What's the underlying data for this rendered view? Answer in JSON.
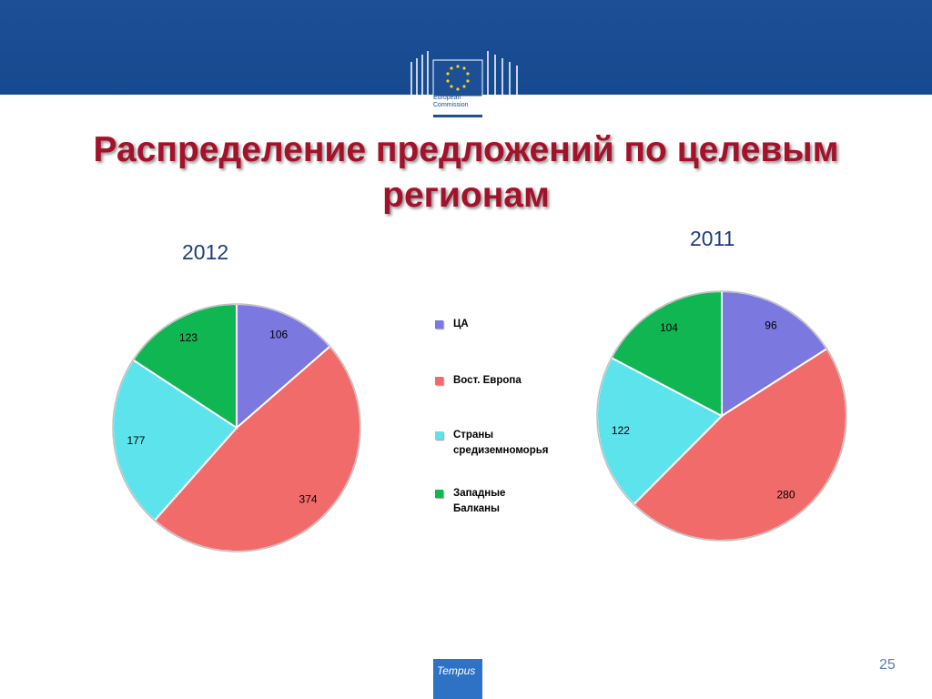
{
  "slide": {
    "title": "Распределение предложений по целевым регионам",
    "page_number": "25",
    "logo_text": "European\nCommission",
    "footer_logo_text": "Tempus"
  },
  "colors": {
    "topbar": "#1c4f96",
    "title": "#a3122a",
    "ca": "#7b78e0",
    "east_europe": "#f26b6b",
    "mediterranean": "#5de3ec",
    "balkans": "#10b652"
  },
  "legend": [
    {
      "label": "ЦА",
      "color": "#7b78e0"
    },
    {
      "label": "Вост. Европа",
      "color": "#f26b6b"
    },
    {
      "label": "Страны\nсредиземноморья",
      "color": "#5de3ec"
    },
    {
      "label": "Западные\nБалканы",
      "color": "#10b652"
    }
  ],
  "chart_data": [
    {
      "type": "pie",
      "title": "2012",
      "categories": [
        "ЦА",
        "Вост. Европа",
        "Страны средиземноморья",
        "Западные Балканы"
      ],
      "values": [
        106,
        374,
        177,
        123
      ]
    },
    {
      "type": "pie",
      "title": "2011",
      "categories": [
        "ЦА",
        "Вост. Европа",
        "Страны средиземноморья",
        "Западные Балканы"
      ],
      "values": [
        96,
        280,
        122,
        104
      ]
    }
  ]
}
